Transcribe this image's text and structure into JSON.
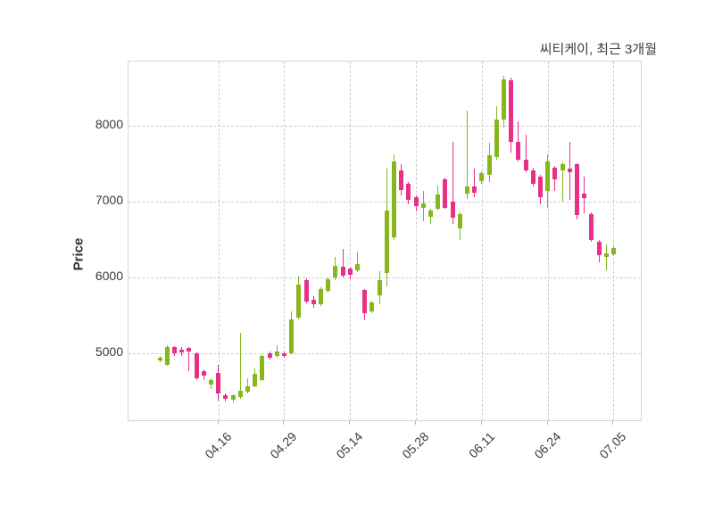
{
  "title": "씨티케이, 최근 3개월",
  "colors": {
    "up": "#86b71c",
    "down": "#e73088",
    "grid": "#cccccc",
    "border": "#d4d4d4",
    "text": "#3a3a3a"
  },
  "chart_data": {
    "type": "candlestick",
    "title": "씨티케이, 최근 3개월",
    "ylabel": "Price",
    "y_ticks": [
      5000,
      6000,
      7000,
      8000
    ],
    "ylim": [
      4095,
      8845
    ],
    "grid": "dashed",
    "x_tick_labels": [
      "04.16",
      "04.29",
      "05.14",
      "05.28",
      "06.11",
      "06.24",
      "07.05"
    ],
    "x_tick_indices": [
      8,
      17,
      26,
      35,
      44,
      53,
      62
    ],
    "ohlc_format": [
      "open",
      "high",
      "low",
      "close"
    ],
    "candles": [
      [
        4905,
        4965,
        4880,
        4940
      ],
      [
        4850,
        5110,
        4840,
        5080
      ],
      [
        5080,
        5100,
        4970,
        5000
      ],
      [
        5045,
        5080,
        4960,
        5010
      ],
      [
        5070,
        5085,
        4765,
        5025
      ],
      [
        5000,
        5010,
        4650,
        4670
      ],
      [
        4765,
        4790,
        4645,
        4705
      ],
      [
        4590,
        4670,
        4530,
        4645
      ],
      [
        4740,
        4845,
        4375,
        4470
      ],
      [
        4445,
        4470,
        4365,
        4400
      ],
      [
        4390,
        4460,
        4355,
        4445
      ],
      [
        4425,
        5270,
        4400,
        4505
      ],
      [
        4495,
        4670,
        4470,
        4565
      ],
      [
        4565,
        4800,
        4550,
        4730
      ],
      [
        4645,
        4985,
        4630,
        4965
      ],
      [
        5000,
        5020,
        4920,
        4940
      ],
      [
        4965,
        5105,
        4940,
        5025
      ],
      [
        5000,
        5025,
        4940,
        4965
      ],
      [
        5000,
        5555,
        4985,
        5445
      ],
      [
        5470,
        6025,
        5450,
        5905
      ],
      [
        5965,
        5985,
        5660,
        5680
      ],
      [
        5705,
        5755,
        5600,
        5645
      ],
      [
        5645,
        5870,
        5625,
        5845
      ],
      [
        5825,
        6000,
        5800,
        5975
      ],
      [
        6000,
        6270,
        5960,
        6155
      ],
      [
        6140,
        6375,
        6000,
        6025
      ],
      [
        6120,
        6145,
        5975,
        6035
      ],
      [
        6095,
        6340,
        6070,
        6175
      ],
      [
        5835,
        5850,
        5435,
        5530
      ],
      [
        5555,
        5690,
        5530,
        5670
      ],
      [
        5765,
        6080,
        5645,
        5965
      ],
      [
        6060,
        7435,
        5880,
        6880
      ],
      [
        6530,
        7625,
        6495,
        7530
      ],
      [
        7410,
        7495,
        7085,
        7155
      ],
      [
        7235,
        7260,
        6965,
        7025
      ],
      [
        7060,
        7085,
        6870,
        6940
      ],
      [
        6920,
        7140,
        6740,
        6975
      ],
      [
        6800,
        6910,
        6705,
        6880
      ],
      [
        6905,
        7210,
        6880,
        7095
      ],
      [
        7295,
        7320,
        6900,
        6920
      ],
      [
        7000,
        7790,
        6705,
        6790
      ],
      [
        6650,
        6860,
        6495,
        6835
      ],
      [
        7105,
        8200,
        7035,
        7200
      ],
      [
        7200,
        7435,
        7060,
        7120
      ],
      [
        7270,
        7400,
        7230,
        7375
      ],
      [
        7355,
        7780,
        7260,
        7610
      ],
      [
        7590,
        8260,
        7555,
        8080
      ],
      [
        8080,
        8660,
        7975,
        8610
      ],
      [
        8600,
        8635,
        7650,
        7790
      ],
      [
        7790,
        8060,
        7530,
        7555
      ],
      [
        7555,
        7880,
        7390,
        7410
      ],
      [
        7410,
        7450,
        7200,
        7235
      ],
      [
        7330,
        7350,
        6965,
        7060
      ],
      [
        7140,
        7625,
        6920,
        7530
      ],
      [
        7445,
        7465,
        7140,
        7295
      ],
      [
        7410,
        7520,
        7000,
        7495
      ],
      [
        7435,
        7790,
        7025,
        7390
      ],
      [
        7495,
        7510,
        6765,
        6825
      ],
      [
        7100,
        7330,
        6845,
        7050
      ],
      [
        6835,
        6855,
        6470,
        6495
      ],
      [
        6470,
        6490,
        6200,
        6295
      ],
      [
        6270,
        6435,
        6095,
        6320
      ],
      [
        6305,
        6410,
        6280,
        6390
      ]
    ]
  }
}
